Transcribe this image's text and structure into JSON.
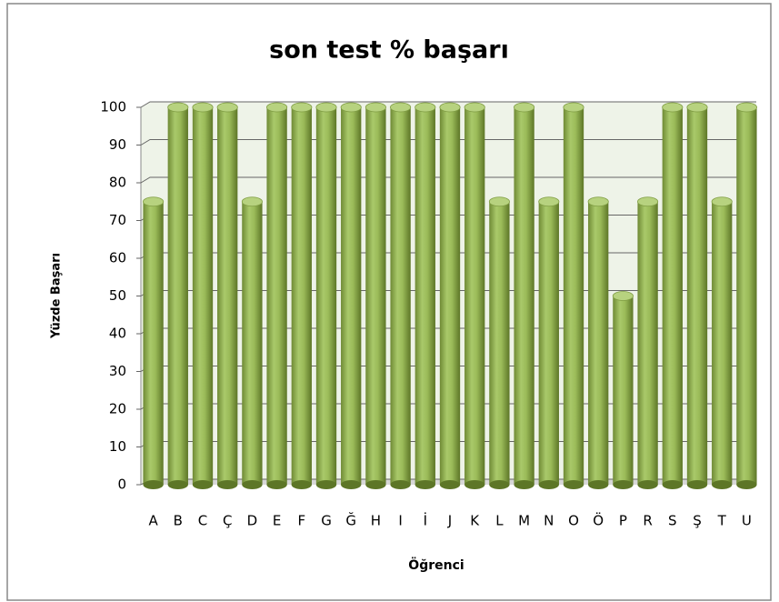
{
  "chart_data": {
    "type": "bar",
    "title": "son test % başarı",
    "x_label": "Öğrenci",
    "y_label": "Yüzde Başarı",
    "categories": [
      "A",
      "B",
      "C",
      "Ç",
      "D",
      "E",
      "F",
      "G",
      "Ğ",
      "H",
      "I",
      "İ",
      "J",
      "K",
      "L",
      "M",
      "N",
      "O",
      "Ö",
      "P",
      "R",
      "S",
      "Ş",
      "T",
      "U"
    ],
    "values": [
      75,
      100,
      100,
      100,
      75,
      100,
      100,
      100,
      100,
      100,
      100,
      100,
      100,
      100,
      75,
      100,
      75,
      100,
      75,
      50,
      75,
      100,
      100,
      75,
      100
    ],
    "color": "#9bbb59",
    "ylim": [
      0,
      100
    ],
    "yticks": [
      0,
      10,
      20,
      30,
      40,
      50,
      60,
      70,
      80,
      90,
      100
    ],
    "grid": true
  }
}
